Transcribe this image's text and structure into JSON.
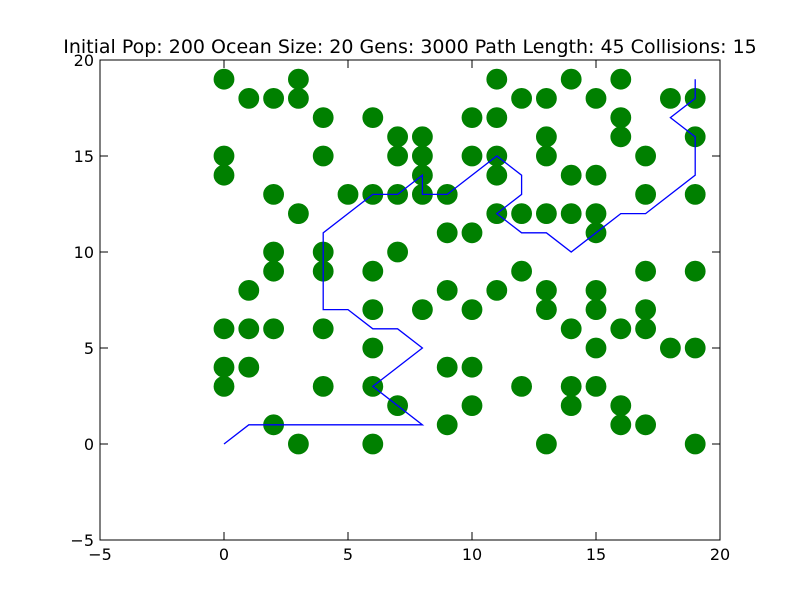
{
  "chart_data": {
    "type": "scatter",
    "title": "Initial Pop: 200 Ocean Size: 20 Gens: 3000 Path Length: 45 Collisions: 15",
    "xlabel": "",
    "ylabel": "",
    "xlim": [
      -5,
      20
    ],
    "ylim": [
      -5,
      20
    ],
    "xticks": [
      "−5",
      "0",
      "5",
      "10",
      "15",
      "20"
    ],
    "yticks": [
      "−5",
      "0",
      "5",
      "10",
      "15",
      "20"
    ],
    "xtick_values": [
      -5,
      0,
      5,
      10,
      15,
      20
    ],
    "ytick_values": [
      -5,
      0,
      5,
      10,
      15,
      20
    ],
    "grid": false,
    "series": [
      {
        "kind": "scatter",
        "color": "#008000",
        "points": [
          [
            0,
            19
          ],
          [
            0,
            15
          ],
          [
            0,
            14
          ],
          [
            0,
            6
          ],
          [
            0,
            4
          ],
          [
            0,
            3
          ],
          [
            1,
            18
          ],
          [
            1,
            8
          ],
          [
            1,
            6
          ],
          [
            1,
            4
          ],
          [
            2,
            18
          ],
          [
            2,
            13
          ],
          [
            2,
            10
          ],
          [
            2,
            9
          ],
          [
            2,
            6
          ],
          [
            2,
            1
          ],
          [
            3,
            19
          ],
          [
            3,
            18
          ],
          [
            3,
            12
          ],
          [
            3,
            0
          ],
          [
            4,
            17
          ],
          [
            4,
            15
          ],
          [
            4,
            10
          ],
          [
            4,
            9
          ],
          [
            4,
            6
          ],
          [
            4,
            3
          ],
          [
            5,
            13
          ],
          [
            6,
            17
          ],
          [
            6,
            13
          ],
          [
            6,
            9
          ],
          [
            6,
            7
          ],
          [
            6,
            5
          ],
          [
            6,
            3
          ],
          [
            6,
            0
          ],
          [
            7,
            16
          ],
          [
            7,
            15
          ],
          [
            7,
            13
          ],
          [
            7,
            10
          ],
          [
            7,
            2
          ],
          [
            8,
            16
          ],
          [
            8,
            15
          ],
          [
            8,
            14
          ],
          [
            8,
            13
          ],
          [
            8,
            7
          ],
          [
            9,
            13
          ],
          [
            9,
            11
          ],
          [
            9,
            8
          ],
          [
            9,
            4
          ],
          [
            9,
            1
          ],
          [
            10,
            17
          ],
          [
            10,
            15
          ],
          [
            10,
            11
          ],
          [
            10,
            7
          ],
          [
            10,
            4
          ],
          [
            10,
            2
          ],
          [
            11,
            19
          ],
          [
            11,
            17
          ],
          [
            11,
            15
          ],
          [
            11,
            14
          ],
          [
            11,
            12
          ],
          [
            11,
            8
          ],
          [
            12,
            18
          ],
          [
            12,
            12
          ],
          [
            12,
            9
          ],
          [
            12,
            3
          ],
          [
            13,
            18
          ],
          [
            13,
            16
          ],
          [
            13,
            15
          ],
          [
            13,
            12
          ],
          [
            13,
            8
          ],
          [
            13,
            7
          ],
          [
            13,
            0
          ],
          [
            14,
            19
          ],
          [
            14,
            14
          ],
          [
            14,
            12
          ],
          [
            14,
            6
          ],
          [
            14,
            3
          ],
          [
            14,
            2
          ],
          [
            15,
            18
          ],
          [
            15,
            14
          ],
          [
            15,
            12
          ],
          [
            15,
            11
          ],
          [
            15,
            8
          ],
          [
            15,
            7
          ],
          [
            15,
            5
          ],
          [
            15,
            3
          ],
          [
            16,
            19
          ],
          [
            16,
            17
          ],
          [
            16,
            16
          ],
          [
            16,
            6
          ],
          [
            16,
            2
          ],
          [
            16,
            1
          ],
          [
            17,
            15
          ],
          [
            17,
            13
          ],
          [
            17,
            9
          ],
          [
            17,
            7
          ],
          [
            17,
            6
          ],
          [
            17,
            1
          ],
          [
            18,
            18
          ],
          [
            18,
            5
          ],
          [
            19,
            18
          ],
          [
            19,
            16
          ],
          [
            19,
            13
          ],
          [
            19,
            9
          ],
          [
            19,
            5
          ],
          [
            19,
            0
          ]
        ]
      },
      {
        "kind": "line",
        "color": "#0000ff",
        "points": [
          [
            0,
            0
          ],
          [
            1,
            1
          ],
          [
            8,
            1
          ],
          [
            6,
            3
          ],
          [
            8,
            5
          ],
          [
            7,
            6
          ],
          [
            6,
            6
          ],
          [
            5,
            7
          ],
          [
            4,
            7
          ],
          [
            4,
            11
          ],
          [
            6,
            13
          ],
          [
            7,
            13
          ],
          [
            8,
            14
          ],
          [
            8,
            13
          ],
          [
            9,
            13
          ],
          [
            11,
            15
          ],
          [
            12,
            14
          ],
          [
            12,
            13
          ],
          [
            11,
            12
          ],
          [
            12,
            11
          ],
          [
            13,
            11
          ],
          [
            14,
            10
          ],
          [
            15,
            11
          ],
          [
            16,
            12
          ],
          [
            17,
            12
          ],
          [
            19,
            14
          ],
          [
            19,
            16
          ],
          [
            18,
            17
          ],
          [
            19,
            18
          ],
          [
            19,
            19
          ]
        ]
      }
    ]
  }
}
